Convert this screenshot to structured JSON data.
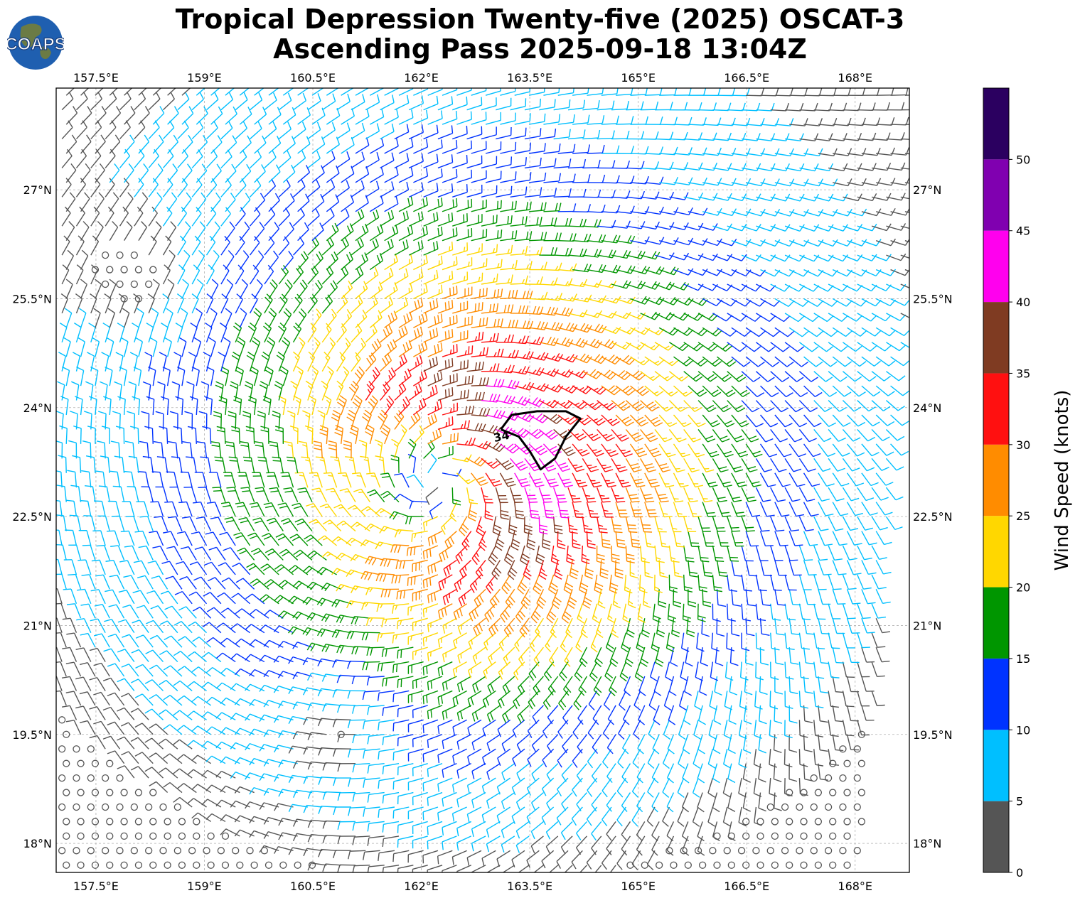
{
  "title": {
    "line1": "Tropical Depression Twenty-five (2025) OSCAT-3",
    "line2": "Ascending Pass 2025-09-18 13:04Z"
  },
  "logo": {
    "text": "COAPS",
    "icon": "globe-logo-icon",
    "ocean": "#1f5fb0",
    "land": "#6b7b45"
  },
  "map": {
    "lon_range": [
      156.95,
      168.75
    ],
    "lat_range": [
      17.6,
      28.4
    ],
    "lon_ticks": [
      "157.5°E",
      "159°E",
      "160.5°E",
      "162°E",
      "163.5°E",
      "165°E",
      "166.5°E",
      "168°E"
    ],
    "lon_tick_values": [
      157.5,
      159,
      160.5,
      162,
      163.5,
      165,
      166.5,
      168
    ],
    "lat_ticks": [
      "18°N",
      "19.5°N",
      "21°N",
      "22.5°N",
      "24°N",
      "25.5°N",
      "27°N"
    ],
    "lat_tick_values": [
      18,
      19.5,
      21,
      22.5,
      24,
      25.5,
      27
    ],
    "grid": true,
    "gridline_color": "#b0b0b0",
    "storm_center": {
      "lon": 162.2,
      "lat": 23.0
    },
    "contour_label": "34",
    "contour_knots": 34,
    "contour_color": "#000000",
    "contour_points": [
      [
        163.1,
        23.7
      ],
      [
        163.25,
        23.9
      ],
      [
        163.6,
        23.95
      ],
      [
        164.0,
        23.95
      ],
      [
        164.2,
        23.85
      ],
      [
        164.0,
        23.6
      ],
      [
        163.85,
        23.3
      ],
      [
        163.65,
        23.15
      ],
      [
        163.5,
        23.4
      ],
      [
        163.35,
        23.6
      ],
      [
        163.1,
        23.7
      ]
    ]
  },
  "colorbar": {
    "label": "Wind Speed (knots)",
    "ticks": [
      "0",
      "5",
      "10",
      "15",
      "20",
      "25",
      "30",
      "35",
      "40",
      "45",
      "50"
    ],
    "tick_values": [
      0,
      5,
      10,
      15,
      20,
      25,
      30,
      35,
      40,
      45,
      50
    ],
    "max": 55,
    "bins": [
      {
        "min": 0,
        "max": 5,
        "color": "#555555"
      },
      {
        "min": 5,
        "max": 10,
        "color": "#00bfff"
      },
      {
        "min": 10,
        "max": 15,
        "color": "#0033ff"
      },
      {
        "min": 15,
        "max": 20,
        "color": "#009600"
      },
      {
        "min": 20,
        "max": 25,
        "color": "#ffd700"
      },
      {
        "min": 25,
        "max": 30,
        "color": "#ff8c00"
      },
      {
        "min": 30,
        "max": 35,
        "color": "#ff1010"
      },
      {
        "min": 35,
        "max": 40,
        "color": "#7f3b22"
      },
      {
        "min": 40,
        "max": 45,
        "color": "#ff00ee"
      },
      {
        "min": 45,
        "max": 50,
        "color": "#8000b0"
      },
      {
        "min": 50,
        "max": 55,
        "color": "#2b0060"
      }
    ]
  }
}
